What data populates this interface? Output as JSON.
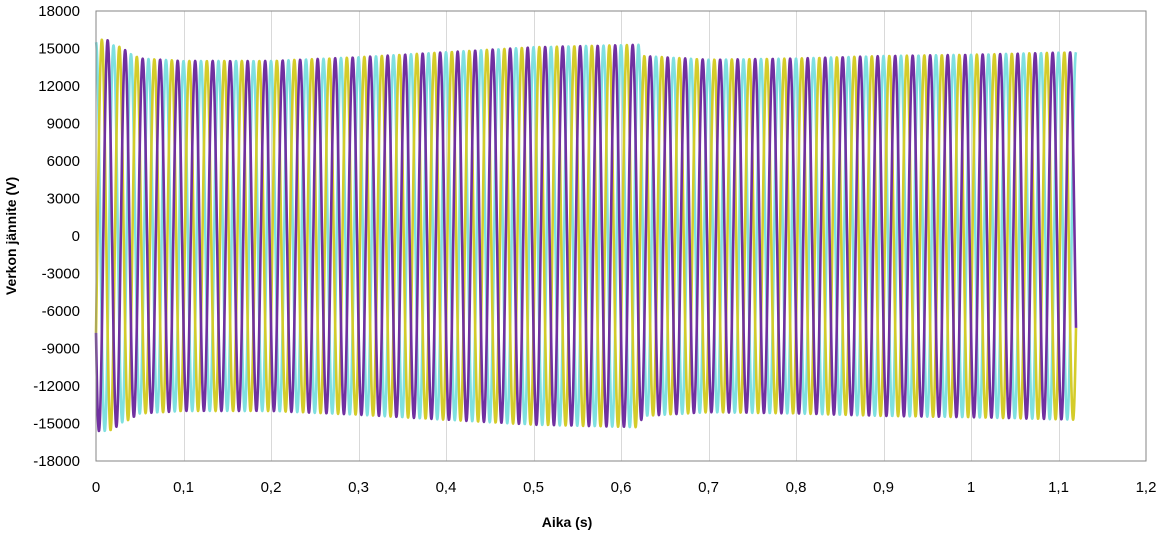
{
  "chart_data": {
    "type": "line",
    "title": "",
    "xlabel": "Aika (s)",
    "ylabel": "Verkon jännite (V)",
    "xlim": [
      0,
      1.2
    ],
    "ylim": [
      -18000,
      18000
    ],
    "x_ticks": [
      0,
      0.1,
      0.2,
      0.3,
      0.4,
      0.5,
      0.6,
      0.7,
      0.8,
      0.9,
      1,
      1.1,
      1.2
    ],
    "x_tick_labels": [
      "0",
      "0,1",
      "0,2",
      "0,3",
      "0,4",
      "0,5",
      "0,6",
      "0,7",
      "0,8",
      "0,9",
      "1",
      "1,1",
      "1,2"
    ],
    "y_ticks": [
      18000,
      15000,
      12000,
      9000,
      6000,
      3000,
      0,
      -3000,
      -6000,
      -9000,
      -12000,
      -15000,
      -18000
    ],
    "y_tick_labels": [
      "18000",
      "15000",
      "12000",
      "9000",
      "6000",
      "3000",
      "0",
      "-3000",
      "-6000",
      "-9000",
      "-12000",
      "-15000",
      "-18000"
    ],
    "grid": {
      "vertical": true,
      "horizontal": false
    },
    "legend": "none",
    "x_end": 1.12,
    "frequency_hz": 50,
    "series": [
      {
        "color": "#7fe0e0",
        "phase_deg": 90,
        "envelope": [
          [
            0,
            15500
          ],
          [
            0.01,
            15600
          ],
          [
            0.05,
            14200
          ],
          [
            0.1,
            14000
          ],
          [
            0.2,
            14000
          ],
          [
            0.3,
            14300
          ],
          [
            0.4,
            14700
          ],
          [
            0.5,
            15100
          ],
          [
            0.62,
            15300
          ],
          [
            0.625,
            14400
          ],
          [
            0.7,
            14100
          ],
          [
            0.8,
            14200
          ],
          [
            0.9,
            14400
          ],
          [
            1.0,
            14500
          ],
          [
            1.12,
            14700
          ]
        ]
      },
      {
        "color": "#d4cc2a",
        "phase_deg": -30,
        "envelope": [
          [
            0,
            15500
          ],
          [
            0.01,
            15800
          ],
          [
            0.05,
            14200
          ],
          [
            0.1,
            14000
          ],
          [
            0.2,
            14000
          ],
          [
            0.3,
            14300
          ],
          [
            0.4,
            14700
          ],
          [
            0.5,
            15100
          ],
          [
            0.62,
            15300
          ],
          [
            0.625,
            14400
          ],
          [
            0.7,
            14100
          ],
          [
            0.8,
            14200
          ],
          [
            0.9,
            14400
          ],
          [
            1.0,
            14500
          ],
          [
            1.12,
            14700
          ]
        ]
      },
      {
        "color": "#7030a0",
        "phase_deg": 210,
        "envelope": [
          [
            0,
            15500
          ],
          [
            0.01,
            15800
          ],
          [
            0.05,
            14200
          ],
          [
            0.1,
            14000
          ],
          [
            0.2,
            14000
          ],
          [
            0.3,
            14300
          ],
          [
            0.4,
            14700
          ],
          [
            0.5,
            15100
          ],
          [
            0.62,
            15300
          ],
          [
            0.625,
            14400
          ],
          [
            0.7,
            14100
          ],
          [
            0.8,
            14200
          ],
          [
            0.9,
            14400
          ],
          [
            1.0,
            14500
          ],
          [
            1.12,
            14700
          ]
        ]
      }
    ]
  }
}
